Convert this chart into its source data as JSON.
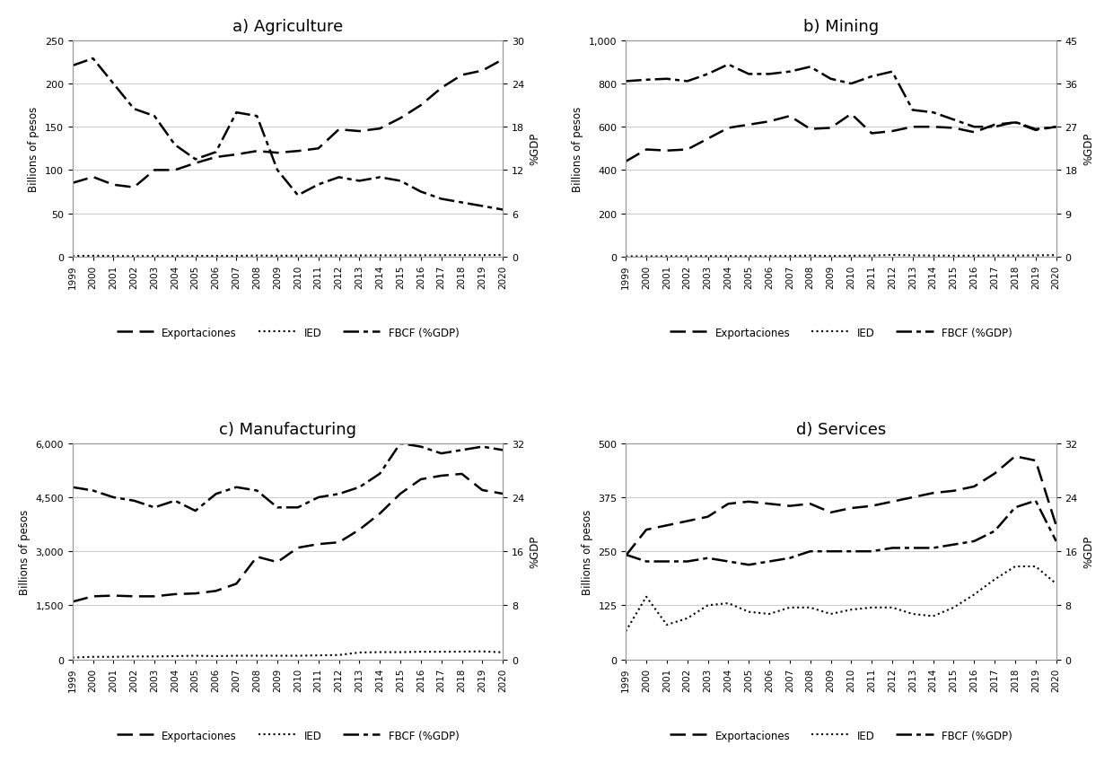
{
  "years": [
    1999,
    2000,
    2001,
    2002,
    2003,
    2004,
    2005,
    2006,
    2007,
    2008,
    2009,
    2010,
    2011,
    2012,
    2013,
    2014,
    2015,
    2016,
    2017,
    2018,
    2019,
    2020
  ],
  "agriculture": {
    "title": "a) Agriculture",
    "exportaciones": [
      85,
      92,
      83,
      80,
      100,
      100,
      108,
      115,
      118,
      122,
      120,
      122,
      125,
      147,
      145,
      148,
      160,
      175,
      195,
      210,
      215,
      228
    ],
    "ied": [
      0.5,
      0.8,
      0.5,
      0.4,
      0.5,
      0.5,
      0.6,
      0.6,
      0.7,
      1.0,
      0.8,
      0.9,
      1.0,
      1.0,
      1.1,
      1.2,
      1.2,
      1.3,
      1.4,
      1.5,
      1.5,
      1.6
    ],
    "fbcf": [
      26.5,
      27.5,
      24.0,
      20.5,
      19.5,
      15.5,
      13.5,
      14.5,
      20.0,
      19.5,
      12.0,
      8.5,
      10.0,
      11.0,
      10.5,
      11.0,
      10.5,
      9.0,
      8.0,
      7.5,
      7.0,
      6.5
    ],
    "ylim_left": [
      0,
      250
    ],
    "ylim_right": [
      0,
      30
    ],
    "yticks_left": [
      0,
      50,
      100,
      150,
      200,
      250
    ],
    "yticks_right": [
      0,
      6,
      12,
      18,
      24,
      30
    ],
    "ylabel_left": "Billions of pesos",
    "ylabel_right": "%GDP"
  },
  "mining": {
    "title": "b) Mining",
    "exportaciones": [
      440,
      495,
      490,
      495,
      545,
      595,
      610,
      625,
      650,
      590,
      595,
      660,
      570,
      580,
      600,
      600,
      595,
      575,
      610,
      620,
      585,
      600
    ],
    "ied": [
      0.5,
      0.5,
      0.8,
      0.8,
      1.2,
      1.5,
      1.5,
      1.5,
      2.0,
      4.0,
      2.0,
      3.5,
      4.0,
      7.0,
      5.0,
      4.0,
      3.5,
      3.5,
      4.5,
      4.0,
      5.0,
      6.0
    ],
    "fbcf": [
      36.5,
      36.8,
      37.0,
      36.5,
      38.0,
      40.0,
      38.0,
      38.0,
      38.5,
      39.5,
      37.0,
      36.0,
      37.5,
      38.5,
      30.5,
      30.0,
      28.5,
      27.0,
      27.0,
      28.0,
      26.5,
      27.0
    ],
    "ylim_left": [
      0,
      1000
    ],
    "ylim_right": [
      0,
      45
    ],
    "yticks_left": [
      0,
      200,
      400,
      600,
      800,
      1000
    ],
    "yticks_right": [
      0,
      9,
      18,
      27,
      36,
      45
    ],
    "ylabel_left": "Billions of pesos",
    "ylabel_right": "%GDP"
  },
  "manufacturing": {
    "title": "c) Manufacturing",
    "exportaciones": [
      1600,
      1750,
      1770,
      1750,
      1750,
      1810,
      1830,
      1900,
      2100,
      2850,
      2700,
      3100,
      3200,
      3250,
      3600,
      4050,
      4600,
      5000,
      5100,
      5150,
      4700,
      4600
    ],
    "ied": [
      50,
      70,
      70,
      80,
      80,
      90,
      100,
      90,
      100,
      100,
      100,
      100,
      110,
      120,
      190,
      200,
      200,
      210,
      210,
      215,
      220,
      195
    ],
    "fbcf": [
      25.5,
      25.0,
      24.0,
      23.5,
      22.5,
      23.5,
      22.0,
      24.5,
      25.5,
      25.0,
      22.5,
      22.5,
      24.0,
      24.5,
      25.5,
      27.5,
      32.0,
      31.5,
      30.5,
      31.0,
      31.5,
      31.0
    ],
    "ylim_left": [
      0,
      6000
    ],
    "ylim_right": [
      0,
      32
    ],
    "yticks_left": [
      0,
      1500,
      3000,
      4500,
      6000
    ],
    "yticks_right": [
      0,
      8,
      16,
      24,
      32
    ],
    "ylabel_left": "Billions of pesos",
    "ylabel_right": "%GDP"
  },
  "services": {
    "title": "d) Services",
    "exportaciones": [
      240,
      300,
      310,
      320,
      330,
      360,
      365,
      360,
      355,
      360,
      340,
      350,
      355,
      365,
      375,
      385,
      390,
      400,
      430,
      470,
      460,
      310
    ],
    "ied": [
      65,
      145,
      80,
      95,
      125,
      130,
      110,
      105,
      120,
      120,
      105,
      115,
      120,
      120,
      105,
      100,
      120,
      150,
      185,
      215,
      215,
      175
    ],
    "fbcf": [
      15.5,
      14.5,
      14.5,
      14.5,
      15.0,
      14.5,
      14.0,
      14.5,
      15.0,
      16.0,
      16.0,
      16.0,
      16.0,
      16.5,
      16.5,
      16.5,
      17.0,
      17.5,
      19.0,
      22.5,
      23.5,
      17.5
    ],
    "ylim_left": [
      0,
      500
    ],
    "ylim_right": [
      0,
      32
    ],
    "yticks_left": [
      0,
      125,
      250,
      375,
      500
    ],
    "yticks_right": [
      0,
      8,
      16,
      24,
      32
    ],
    "ylabel_left": "Billions of pesos",
    "ylabel_right": "%GDP"
  },
  "background_color": "#ffffff",
  "grid_color": "#cccccc"
}
